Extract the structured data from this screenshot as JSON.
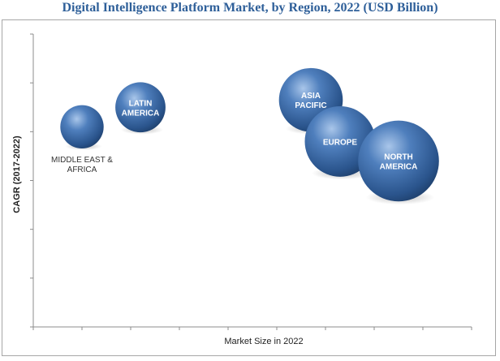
{
  "chart_data": {
    "type": "scatter",
    "title": "Digital Intelligence Platform Market, by Region, 2022 (USD Billion)",
    "xlabel": "Market Size in 2022",
    "ylabel": "CAGR (2017-2022)",
    "grid": false,
    "bubble_color": "#2f5e97",
    "points": [
      {
        "label": [
          "MIDDLE EAST &",
          "AFRICA"
        ],
        "x": 1.0,
        "y": 4.1,
        "size": 0.35,
        "label_position": "below"
      },
      {
        "label": [
          "LATIN",
          "AMERICA"
        ],
        "x": 2.2,
        "y": 4.5,
        "size": 0.45,
        "label_position": "inside"
      },
      {
        "label": [
          "ASIA",
          "PACIFIC"
        ],
        "x": 5.7,
        "y": 4.65,
        "size": 0.65,
        "label_position": "inside"
      },
      {
        "label": [
          "EUROPE"
        ],
        "x": 6.3,
        "y": 3.8,
        "size": 0.75,
        "label_position": "inside"
      },
      {
        "label": [
          "NORTH",
          "AMERICA"
        ],
        "x": 7.5,
        "y": 3.4,
        "size": 0.9,
        "label_position": "inside"
      }
    ],
    "xlim": [
      0,
      9
    ],
    "ylim": [
      0,
      6
    ],
    "x_ticks": 9,
    "y_ticks": 6
  }
}
